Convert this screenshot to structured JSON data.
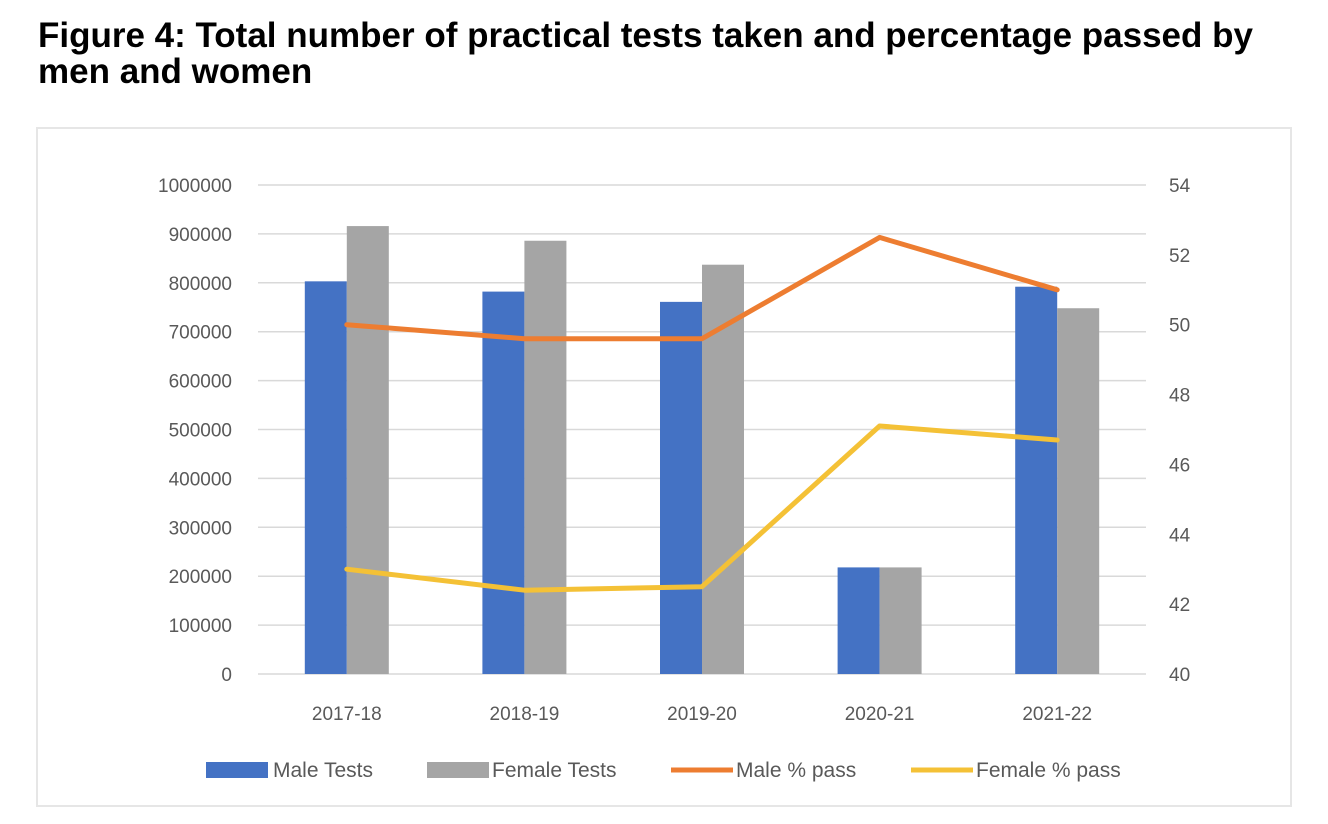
{
  "figure": {
    "title": "Figure 4: Total number of practical tests taken and percentage passed by men and women"
  },
  "colors": {
    "male_tests": "#4472c4",
    "female_tests": "#a5a5a5",
    "male_pass": "#ed7d31",
    "female_pass": "#f4c136",
    "gridline": "#d9d9d9",
    "tick_text": "#595959"
  },
  "chart_data": {
    "type": "bar",
    "title": "Figure 4: Total number of practical tests taken and percentage passed by men and women",
    "categories": [
      "2017-18",
      "2018-19",
      "2019-20",
      "2020-21",
      "2021-22"
    ],
    "series": [
      {
        "name": "Male Tests",
        "type": "bar",
        "axis": "left",
        "values": [
          803000,
          782000,
          761000,
          218000,
          792000
        ]
      },
      {
        "name": "Female Tests",
        "type": "bar",
        "axis": "left",
        "values": [
          916000,
          886000,
          837000,
          218000,
          748000
        ]
      },
      {
        "name": "Male % pass",
        "type": "line",
        "axis": "right",
        "values": [
          50.0,
          49.6,
          49.6,
          52.5,
          51.0
        ]
      },
      {
        "name": "Female % pass",
        "type": "line",
        "axis": "right",
        "values": [
          43.0,
          42.4,
          42.5,
          47.1,
          46.7
        ]
      }
    ],
    "y_left": {
      "min": 0,
      "max": 1000000,
      "step": 100000,
      "ticks": [
        "0",
        "100000",
        "200000",
        "300000",
        "400000",
        "500000",
        "600000",
        "700000",
        "800000",
        "900000",
        "1000000"
      ]
    },
    "y_right": {
      "min": 40,
      "max": 54,
      "step": 2,
      "ticks": [
        "40",
        "42",
        "44",
        "46",
        "48",
        "50",
        "52",
        "54"
      ]
    },
    "xlabel": "",
    "ylabel": "",
    "grid": true,
    "legend": {
      "position": "bottom",
      "labels": [
        "Male Tests",
        "Female Tests",
        "Male % pass",
        "Female % pass"
      ]
    }
  }
}
